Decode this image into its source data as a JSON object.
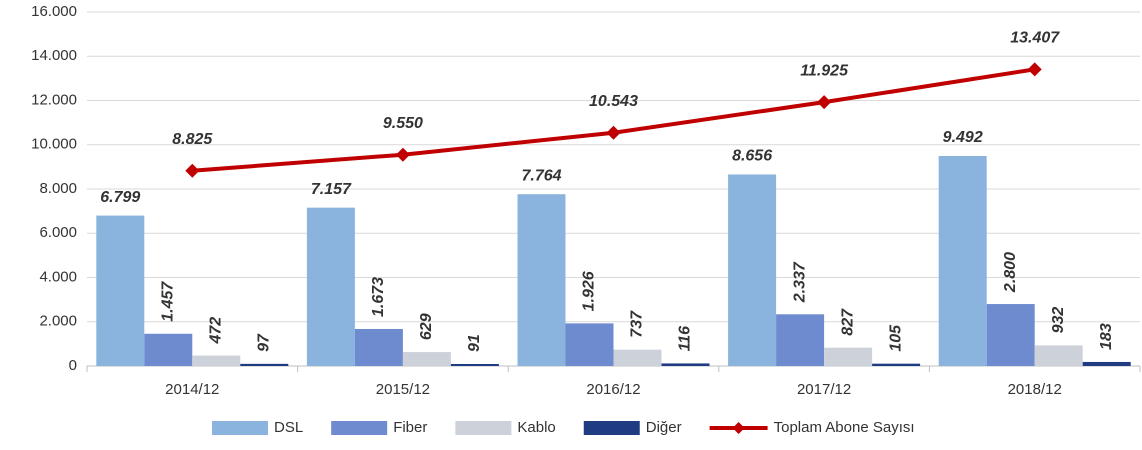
{
  "chart_data": {
    "type": "bar",
    "categories": [
      "2014/12",
      "2015/12",
      "2016/12",
      "2017/12",
      "2018/12"
    ],
    "series": [
      {
        "name": "DSL",
        "color": "#8ab4de",
        "values": [
          6799,
          7157,
          7764,
          8656,
          9492
        ],
        "value_labels": [
          "6.799",
          "7.157",
          "7.764",
          "8.656",
          "9.492"
        ]
      },
      {
        "name": "Fiber",
        "color": "#6f8bcf",
        "values": [
          1457,
          1673,
          1926,
          2337,
          2800
        ],
        "value_labels": [
          "1.457",
          "1.673",
          "1.926",
          "2.337",
          "2.800"
        ]
      },
      {
        "name": "Kablo",
        "color": "#cdd1da",
        "values": [
          472,
          629,
          737,
          827,
          932
        ],
        "value_labels": [
          "472",
          "629",
          "737",
          "827",
          "932"
        ]
      },
      {
        "name": "Diğer",
        "color": "#1f3c82",
        "values": [
          97,
          91,
          116,
          105,
          183
        ],
        "value_labels": [
          "97",
          "91",
          "116",
          "105",
          "183"
        ]
      },
      {
        "name": "Toplam Abone Sayısı",
        "color": "#c00000",
        "type": "line",
        "values": [
          8825,
          9550,
          10543,
          11925,
          13407
        ],
        "value_labels": [
          "8.825",
          "9.550",
          "10.543",
          "11.925",
          "13.407"
        ]
      }
    ],
    "ylim": [
      0,
      16000
    ],
    "yticks": [
      0,
      {
        "value": 2000,
        "label": "2.000"
      },
      {
        "value": 4000,
        "label": "4.000"
      },
      {
        "value": 6000,
        "label": "6.000"
      },
      {
        "value": 8000,
        "label": "8.000"
      },
      {
        "value": 10000,
        "label": "10.000"
      },
      {
        "value": 12000,
        "label": "12.000"
      },
      {
        "value": 14000,
        "label": "14.000"
      },
      {
        "value": 16000,
        "label": "16.000"
      }
    ],
    "grid": true,
    "legend": "bottom"
  }
}
